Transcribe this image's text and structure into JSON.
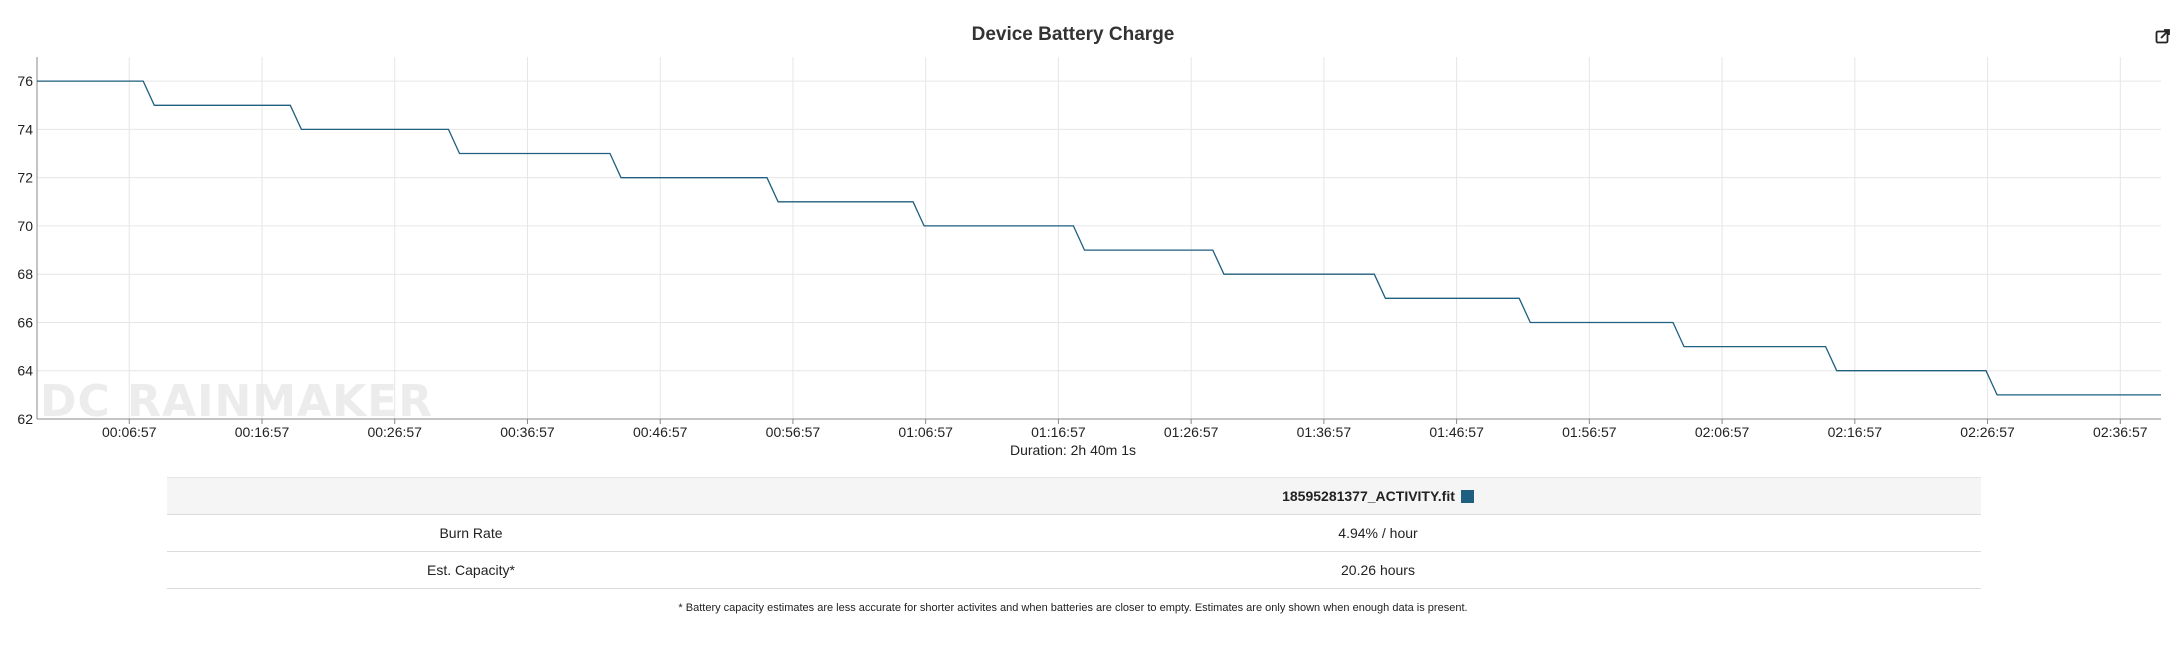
{
  "chart_data": {
    "type": "line",
    "title": "Device Battery Charge",
    "xlabel": "Duration: 2h 40m 1s",
    "ylabel": "",
    "ylim": [
      62,
      77
    ],
    "xlim_seconds": [
      0,
      9601
    ],
    "yticks": [
      62,
      64,
      66,
      68,
      70,
      72,
      74,
      76
    ],
    "xticks": [
      {
        "t": 417,
        "label": "00:06:57"
      },
      {
        "t": 1017,
        "label": "00:16:57"
      },
      {
        "t": 1617,
        "label": "00:26:57"
      },
      {
        "t": 2217,
        "label": "00:36:57"
      },
      {
        "t": 2817,
        "label": "00:46:57"
      },
      {
        "t": 3417,
        "label": "00:56:57"
      },
      {
        "t": 4017,
        "label": "01:06:57"
      },
      {
        "t": 4617,
        "label": "01:16:57"
      },
      {
        "t": 5217,
        "label": "01:26:57"
      },
      {
        "t": 5817,
        "label": "01:36:57"
      },
      {
        "t": 6417,
        "label": "01:46:57"
      },
      {
        "t": 7017,
        "label": "01:56:57"
      },
      {
        "t": 7617,
        "label": "02:06:57"
      },
      {
        "t": 8217,
        "label": "02:16:57"
      },
      {
        "t": 8817,
        "label": "02:26:57"
      },
      {
        "t": 9417,
        "label": "02:36:57"
      }
    ],
    "grid": true,
    "series": [
      {
        "name": "18595281377_ACTIVITY.fit",
        "color": "#1f5f7f",
        "points": [
          [
            0,
            76
          ],
          [
            480,
            76
          ],
          [
            530,
            75
          ],
          [
            1145,
            75
          ],
          [
            1195,
            74
          ],
          [
            1860,
            74
          ],
          [
            1910,
            73
          ],
          [
            2590,
            73
          ],
          [
            2640,
            72
          ],
          [
            3300,
            72
          ],
          [
            3350,
            71
          ],
          [
            3960,
            71
          ],
          [
            4010,
            70
          ],
          [
            4685,
            70
          ],
          [
            4735,
            69
          ],
          [
            5315,
            69
          ],
          [
            5365,
            68
          ],
          [
            6045,
            68
          ],
          [
            6095,
            67
          ],
          [
            6700,
            67
          ],
          [
            6750,
            66
          ],
          [
            7395,
            66
          ],
          [
            7445,
            65
          ],
          [
            8085,
            65
          ],
          [
            8135,
            64
          ],
          [
            8810,
            64
          ],
          [
            8860,
            63
          ],
          [
            9601,
            63
          ]
        ]
      }
    ]
  },
  "export_icon": "external-link-icon",
  "watermark": "DC RAINMAKER",
  "stats": {
    "file_name": "18595281377_ACTIVITY.fit",
    "swatch_color": "#1f5f7f",
    "rows": [
      {
        "label": "Burn Rate",
        "value": "4.94% / hour"
      },
      {
        "label": "Est. Capacity*",
        "value": "20.26 hours"
      }
    ]
  },
  "footnote": "* Battery capacity estimates are less accurate for shorter activites and when batteries are closer to empty. Estimates are only shown when enough data is present."
}
